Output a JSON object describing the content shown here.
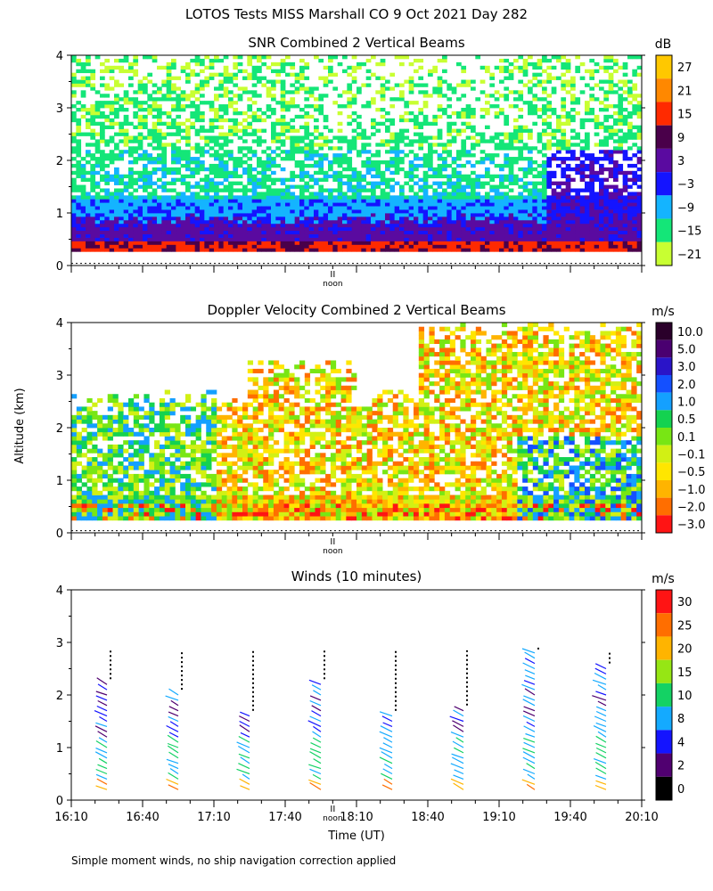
{
  "header": {
    "main_title": "LOTOS Tests MISS Marshall CO   9 Oct 2021 Day 282",
    "shared_ylabel": "Altitude (km)",
    "noon_label": "noon",
    "noon_mark": "II",
    "footer_note": "Simple moment winds, no ship navigation correction applied"
  },
  "chart_data": [
    {
      "type": "heatmap",
      "title": "SNR Combined 2 Vertical Beams",
      "ylim": [
        0,
        4
      ],
      "y_ticks": [
        "0",
        "1",
        "2",
        "3",
        "4"
      ],
      "xlim_minutes_since_midnight": [
        970,
        1210
      ],
      "colorbar": {
        "unit": "dB",
        "labels": [
          "27",
          "21",
          "15",
          "9",
          "3",
          "−3",
          "−9",
          "−15",
          "−21"
        ],
        "colors": [
          "#ffc800",
          "#ff8800",
          "#ff2a00",
          "#4a004a",
          "#5a0aa0",
          "#1414ff",
          "#14b4ff",
          "#14e678",
          "#c8ff32"
        ]
      },
      "structure": {
        "x_minutes": [
          970,
          1000,
          1030,
          1060,
          1090,
          1120,
          1150,
          1180,
          1210
        ],
        "near_surface_value": -1,
        "mid_value": -12,
        "upper_value": -18
      }
    },
    {
      "type": "heatmap",
      "title": "Doppler Velocity Combined 2 Vertical Beams",
      "ylim": [
        0,
        4
      ],
      "y_ticks": [
        "0",
        "1",
        "2",
        "3",
        "4"
      ],
      "xlim_minutes_since_midnight": [
        970,
        1210
      ],
      "colorbar": {
        "unit": "m/s",
        "labels": [
          "10.0",
          "5.0",
          "3.0",
          "2.0",
          "1.0",
          "0.5",
          "0.1",
          "−0.1",
          "−0.5",
          "−1.0",
          "−2.0",
          "−3.0"
        ],
        "colors": [
          "#2a002a",
          "#4a0070",
          "#2a14c8",
          "#1450ff",
          "#14a0ff",
          "#14d250",
          "#78e614",
          "#d2f014",
          "#ffe600",
          "#ffb400",
          "#ff6e00",
          "#ff1414"
        ]
      }
    },
    {
      "type": "scatter",
      "title": "Winds (10 minutes)",
      "xlabel": "Time (UT)",
      "ylim": [
        0,
        4
      ],
      "y_ticks": [
        "0",
        "1",
        "2",
        "3",
        "4"
      ],
      "xlim_minutes_since_midnight": [
        970,
        1210
      ],
      "x_ticks": [
        {
          "minute": 970,
          "label": "16:10"
        },
        {
          "minute": 1000,
          "label": "16:40"
        },
        {
          "minute": 1030,
          "label": "17:10"
        },
        {
          "minute": 1060,
          "label": "17:40"
        },
        {
          "minute": 1090,
          "label": "18:10"
        },
        {
          "minute": 1120,
          "label": "18:40"
        },
        {
          "minute": 1150,
          "label": "19:10"
        },
        {
          "minute": 1180,
          "label": "19:40"
        },
        {
          "minute": 1210,
          "label": "20:10"
        }
      ],
      "noon_minute": 1080,
      "colorbar": {
        "unit": "m/s",
        "labels": [
          "30",
          "25",
          "20",
          "15",
          "10",
          "8",
          "4",
          "2",
          "0"
        ],
        "colors": [
          "#ff1414",
          "#ff6e00",
          "#ffb400",
          "#96e614",
          "#14d264",
          "#14aaff",
          "#1414ff",
          "#500070",
          "#000000"
        ]
      },
      "profile_minutes": [
        985,
        1015,
        1045,
        1075,
        1105,
        1135,
        1165,
        1195
      ],
      "profile_top_km": [
        2.3,
        2.1,
        1.7,
        2.3,
        1.7,
        1.8,
        2.9,
        2.6
      ]
    }
  ]
}
